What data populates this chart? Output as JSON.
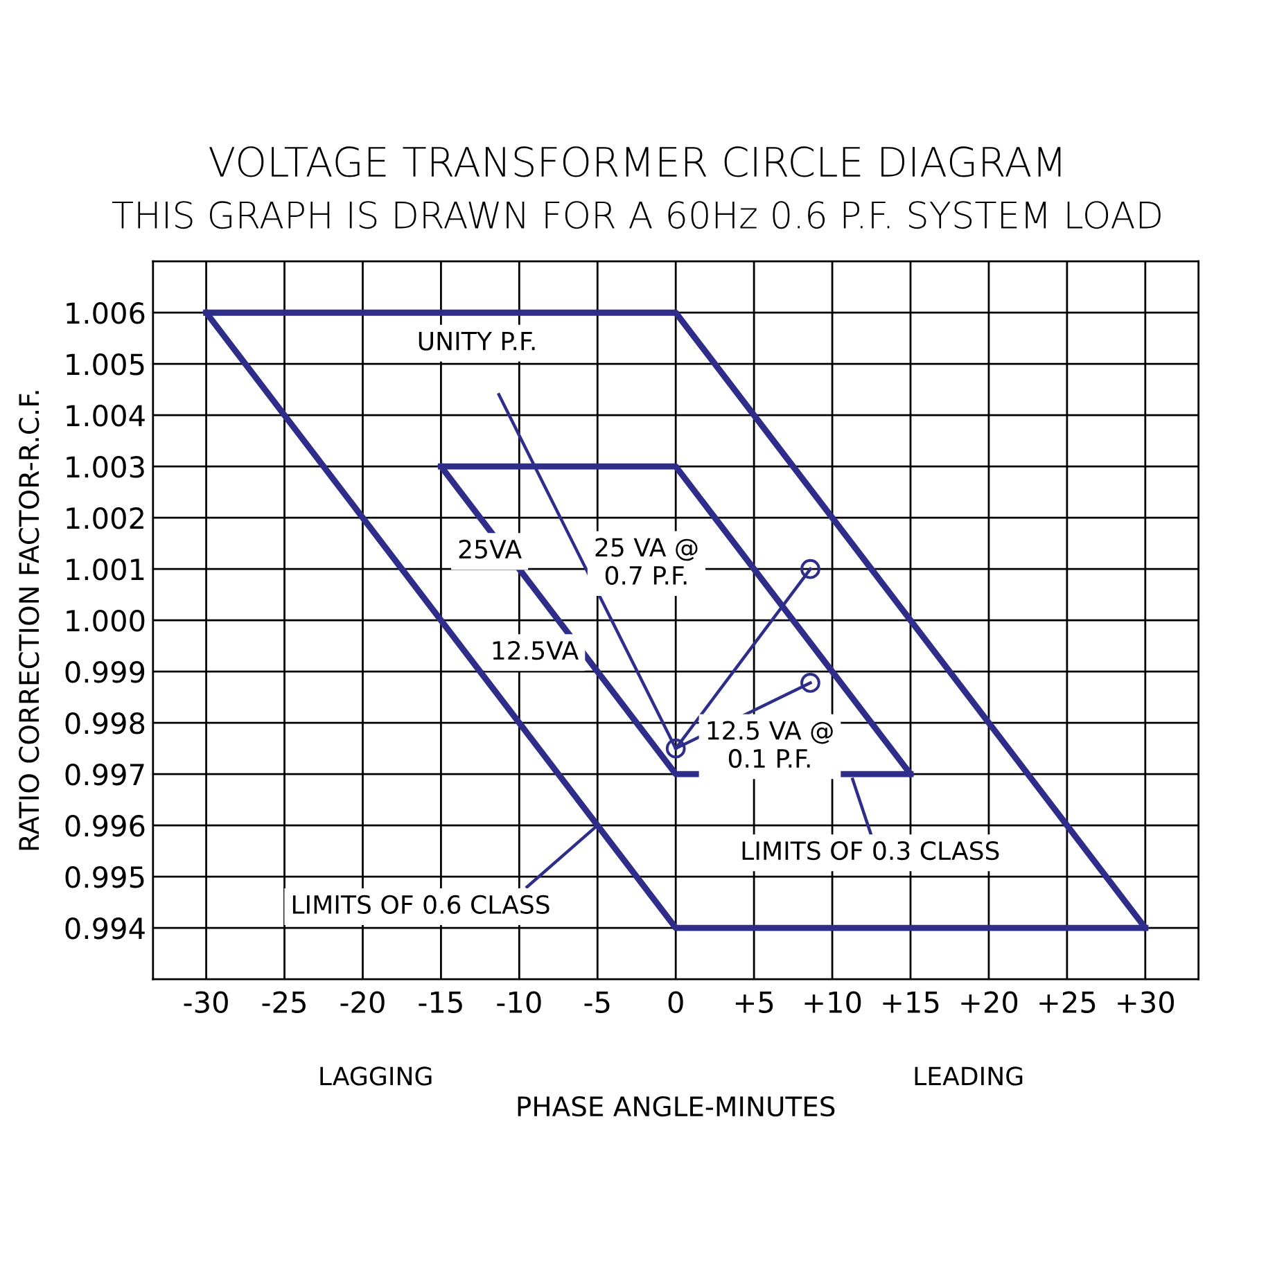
{
  "chart_data": {
    "type": "line",
    "title": "VOLTAGE TRANSFORMER CIRCLE DIAGRAM",
    "subtitle": "THIS GRAPH IS DRAWN FOR A 60Hz 0.6 P.F. SYSTEM LOAD",
    "xlabel": "PHASE ANGLE-MINUTES",
    "ylabel": "RATIO CORRECTION FACTOR-R.C.F.",
    "xlim": [
      -33.4,
      33.4
    ],
    "ylim": [
      0.993,
      1.007
    ],
    "xticks": [
      {
        "value": -30,
        "label": "-30"
      },
      {
        "value": -25,
        "label": "-25"
      },
      {
        "value": -20,
        "label": "-20"
      },
      {
        "value": -15,
        "label": "-15"
      },
      {
        "value": -10,
        "label": "-10"
      },
      {
        "value": -5,
        "label": "-5"
      },
      {
        "value": 0,
        "label": "0"
      },
      {
        "value": 5,
        "label": "+5"
      },
      {
        "value": 10,
        "label": "+10"
      },
      {
        "value": 15,
        "label": "+15"
      },
      {
        "value": 20,
        "label": "+20"
      },
      {
        "value": 25,
        "label": "+25"
      },
      {
        "value": 30,
        "label": "+30"
      }
    ],
    "yticks": [
      {
        "value": 0.994,
        "label": "0.994"
      },
      {
        "value": 0.995,
        "label": "0.995"
      },
      {
        "value": 0.996,
        "label": "0.996"
      },
      {
        "value": 0.997,
        "label": "0.997"
      },
      {
        "value": 0.998,
        "label": "0.998"
      },
      {
        "value": 0.999,
        "label": "0.999"
      },
      {
        "value": 1.0,
        "label": "1.000"
      },
      {
        "value": 1.001,
        "label": "1.001"
      },
      {
        "value": 1.002,
        "label": "1.002"
      },
      {
        "value": 1.003,
        "label": "1.003"
      },
      {
        "value": 1.004,
        "label": "1.004"
      },
      {
        "value": 1.005,
        "label": "1.005"
      },
      {
        "value": 1.006,
        "label": "1.006"
      }
    ],
    "grid": true,
    "line_style": "solid",
    "series": [
      {
        "color": "#2e2e8a",
        "x": [
          -30,
          0,
          30
        ],
        "values": [
          1.006,
          1.006,
          0.994
        ]
      },
      {
        "color": "#2e2e8a",
        "x": [
          -30,
          0,
          30
        ],
        "values": [
          1.006,
          0.994,
          0.994
        ]
      },
      {
        "color": "#2e2e8a",
        "x": [
          -15,
          0,
          15
        ],
        "values": [
          1.003,
          1.003,
          0.997
        ]
      },
      {
        "color": "#2e2e8a",
        "x": [
          -15,
          0,
          15
        ],
        "values": [
          1.003,
          0.997,
          0.997
        ]
      },
      {
        "color": "#2e2e8a",
        "x": [
          -11.3,
          0
        ],
        "values": [
          1.0044,
          0.9975
        ]
      },
      {
        "color": "#2e2e8a",
        "x": [
          0,
          8.6
        ],
        "values": [
          0.9975,
          1.001
        ]
      },
      {
        "color": "#2e2e8a",
        "x": [
          0,
          8.6
        ],
        "values": [
          0.9975,
          0.99878
        ]
      },
      {
        "type": "scatter",
        "color": "#2e2e8a",
        "marker": "circle",
        "x": [
          0,
          8.6,
          8.6
        ],
        "values": [
          0.9975,
          1.001,
          0.99878
        ]
      },
      {
        "color": "#2e2e8a",
        "x": [
          -9.5,
          -5
        ],
        "values": [
          0.9948,
          0.996
        ]
      },
      {
        "color": "#2e2e8a",
        "x": [
          12.5,
          11.3
        ],
        "values": [
          0.9958,
          0.9969
        ]
      }
    ],
    "annotations": [
      "UNITY P.F.",
      "25VA",
      "25 VA @\n0.7 P.F.",
      "12.5VA",
      "12.5 VA @\n0.1 P.F.",
      "LIMITS OF 0.3 CLASS",
      "LIMITS OF 0.6 CLASS",
      "LAGGING",
      "LEADING"
    ]
  }
}
